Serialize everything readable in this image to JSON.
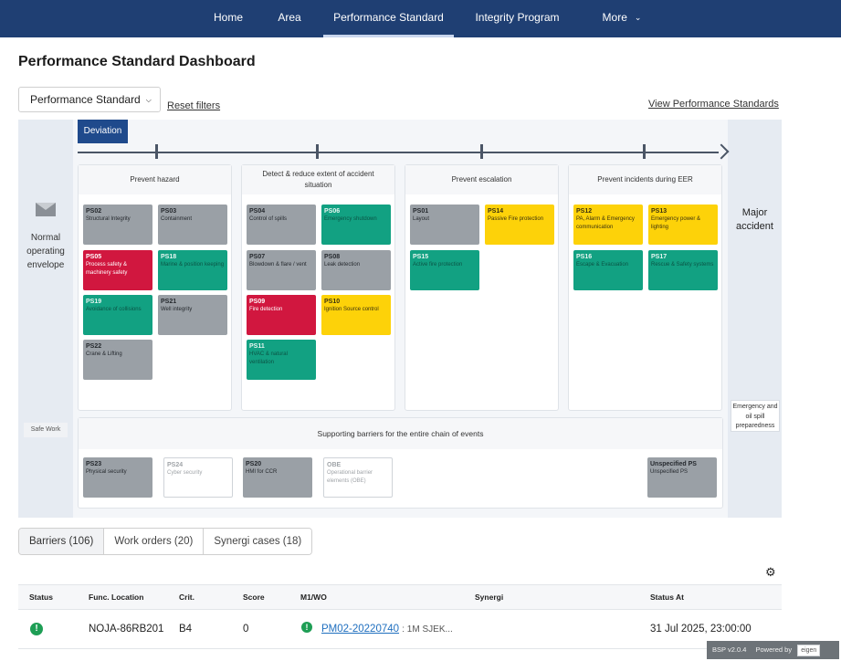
{
  "nav": {
    "items": [
      "Home",
      "Area",
      "Performance Standard",
      "Integrity Program",
      "More"
    ],
    "active": "Performance Standard"
  },
  "page_title": "Performance Standard Dashboard",
  "filters": {
    "dropdown_label": "Performance Standard",
    "reset_label": "Reset filters",
    "view_link": "View Performance Standards"
  },
  "bowtie": {
    "deviation": "Deviation",
    "normal_envelope": "Normal operating envelope",
    "safe_work": "Safe Work",
    "major_accident": "Major accident",
    "emergency_box": "Emergency and oil spill preparedness",
    "columns": [
      {
        "title": "Prevent hazard",
        "cards": [
          {
            "code": "PS02",
            "label": "Structural Integrity",
            "color": "gray"
          },
          {
            "code": "PS03",
            "label": "Containment",
            "color": "gray"
          },
          {
            "code": "PS05",
            "label": "Process safety & machinery safety",
            "color": "red"
          },
          {
            "code": "PS18",
            "label": "Marine & position keeping",
            "color": "green"
          },
          {
            "code": "PS19",
            "label": "Avoidance of collisions",
            "color": "green"
          },
          {
            "code": "PS21",
            "label": "Well integrity",
            "color": "gray"
          },
          {
            "code": "PS22",
            "label": "Crane & Lifting",
            "color": "gray"
          }
        ]
      },
      {
        "title": "Detect & reduce extent of accident situation",
        "cards": [
          {
            "code": "PS04",
            "label": "Control of spills",
            "color": "gray"
          },
          {
            "code": "PS06",
            "label": "Emergency shutdown",
            "color": "green"
          },
          {
            "code": "PS07",
            "label": "Blowdown & flare / vent",
            "color": "gray"
          },
          {
            "code": "PS08",
            "label": "Leak detection",
            "color": "gray"
          },
          {
            "code": "PS09",
            "label": "Fire detection",
            "color": "red"
          },
          {
            "code": "PS10",
            "label": "Ignition Source control",
            "color": "yellow"
          },
          {
            "code": "PS11",
            "label": "HVAC & natural ventilation",
            "color": "green"
          }
        ]
      },
      {
        "title": "Prevent escalation",
        "cards": [
          {
            "code": "PS01",
            "label": "Layout",
            "color": "gray"
          },
          {
            "code": "PS14",
            "label": "Passive Fire protection",
            "color": "yellow"
          },
          {
            "code": "PS15",
            "label": "Active fire protection",
            "color": "green"
          }
        ]
      },
      {
        "title": "Prevent incidents during EER",
        "cards": [
          {
            "code": "PS12",
            "label": "PA, Alarm & Emergency communication",
            "color": "yellow"
          },
          {
            "code": "PS13",
            "label": "Emergency power & lighting",
            "color": "yellow"
          },
          {
            "code": "PS16",
            "label": "Escape & Evacuation",
            "color": "green"
          },
          {
            "code": "PS17",
            "label": "Rescue & Safety systems",
            "color": "green"
          }
        ]
      }
    ],
    "support": {
      "title": "Supporting barriers for the entire chain of events",
      "cards": [
        {
          "code": "PS23",
          "label": "Physical security",
          "color": "gray"
        },
        {
          "code": "PS24",
          "label": "Cyber security",
          "color": "white"
        },
        {
          "code": "PS20",
          "label": "HMI for CCR",
          "color": "gray"
        },
        {
          "code": "OBE",
          "label": "Operational barrier elements (OBE)",
          "color": "white"
        },
        {
          "code": "Unspecified PS",
          "label": "Unspecified PS",
          "color": "gray"
        }
      ]
    }
  },
  "tabs": [
    "Barriers (106)",
    "Work orders (20)",
    "Synergi cases (18)"
  ],
  "table": {
    "headers": [
      "Status",
      "Func. Location",
      "Crit.",
      "Score",
      "M1/WO",
      "Synergi",
      "Status At"
    ],
    "rows": [
      {
        "status": "!",
        "func_location": "NOJA-86RB201",
        "crit": "B4",
        "score": "0",
        "wo_link": "PM02-20220740",
        "wo_desc": ": 1M SJEK...",
        "synergi": "",
        "status_at": "31 Jul 2025, 23:00:00"
      }
    ]
  },
  "footer": {
    "version": "BSP v2.0.4",
    "powered_by": "Powered by",
    "logo": "eigen"
  },
  "colors": {
    "nav_bg": "#1f3f73",
    "gray": "#9aa0a6",
    "green": "#12a182",
    "red": "#d1173f",
    "yellow": "#fdd209",
    "status_ok": "#1e9e55"
  }
}
